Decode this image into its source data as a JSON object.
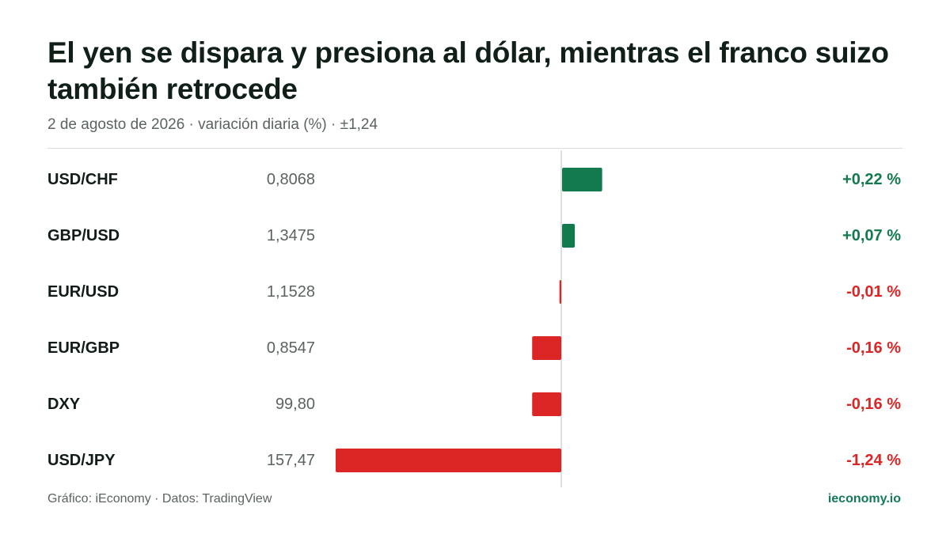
{
  "header": {
    "title": "El yen se dispara y presiona al dólar, mientras el franco suizo también retrocede",
    "subtitle": "2 de agosto de 2026 · variación diaria (%) · ±1,24"
  },
  "footer": {
    "source": "Gráfico: iEconomy · Datos: TradingView",
    "brand": "ieconomy.io"
  },
  "colors": {
    "positive": "#137a4e",
    "negative": "#dc2626",
    "axis": "#d3d6d5"
  },
  "chart_data": {
    "type": "bar",
    "orientation": "horizontal",
    "categories": [
      "USD/CHF",
      "GBP/USD",
      "EUR/USD",
      "EUR/GBP",
      "DXY",
      "USD/JPY"
    ],
    "prices": [
      "0,8068",
      "1,3475",
      "1,1528",
      "0,8547",
      "99,80",
      "157,47"
    ],
    "values": [
      0.22,
      0.07,
      -0.01,
      -0.16,
      -0.16,
      -1.24
    ],
    "value_labels": [
      "+0,22 %",
      "+0,07 %",
      "-0,01 %",
      "-0,16 %",
      "-0,16 %",
      "-1,24 %"
    ],
    "xlim": [
      -1.24,
      1.24
    ],
    "grid": false
  }
}
